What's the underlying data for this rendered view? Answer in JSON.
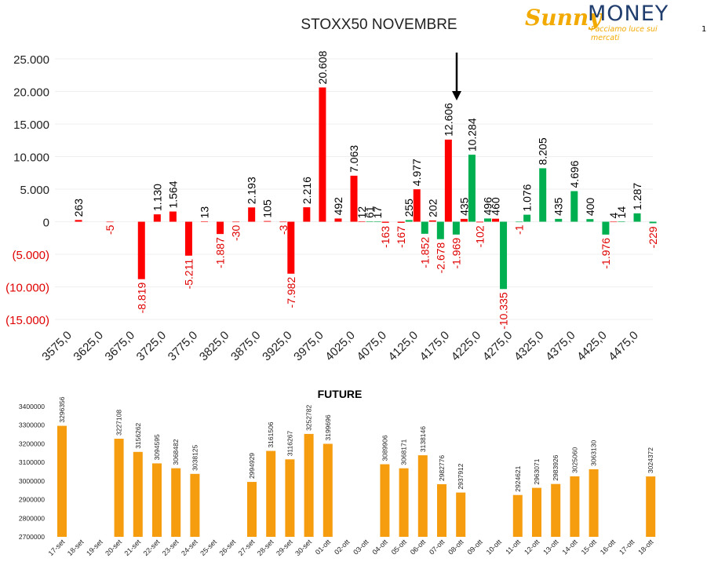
{
  "page_number": "1",
  "logo": {
    "part1": "Sunny",
    "part2": "MONEY",
    "tagline": "Facciamo luce sui mercati"
  },
  "chart_data": [
    {
      "type": "bar",
      "title": "STOXX50 NOVEMBRE",
      "ylim": [
        -15000,
        25000
      ],
      "y_ticks": [
        25000,
        20000,
        15000,
        10000,
        5000,
        0,
        -5000,
        -10000,
        -15000
      ],
      "y_tick_labels": [
        "25.000",
        "20.000",
        "15.000",
        "10.000",
        "5.000",
        "0",
        "(5.000)",
        "(10.000)",
        "(15.000)"
      ],
      "x_tick_labels": [
        "3575,0",
        "3625,0",
        "3675,0",
        "3725,0",
        "3775,0",
        "3825,0",
        "3875,0",
        "3925,0",
        "3975,0",
        "4025,0",
        "4075,0",
        "4125,0",
        "4175,0",
        "4225,0",
        "4275,0",
        "4325,0",
        "4375,0",
        "4425,0",
        "4475,0"
      ],
      "x_range": [
        3575,
        4475
      ],
      "colors": {
        "red": "#ff0000",
        "green": "#00b050",
        "positive_label": "#000000",
        "negative_label": "#e00000"
      },
      "arrow_strike": 4187.5,
      "bars": [
        {
          "strike": 3600,
          "value": 263,
          "label": "263",
          "color": "red"
        },
        {
          "strike": 3650,
          "value": -5,
          "label": "-5",
          "color": "red"
        },
        {
          "strike": 3700,
          "value": -8819,
          "label": "-8.819",
          "color": "red"
        },
        {
          "strike": 3725,
          "value": 1130,
          "label": "1.130",
          "color": "red"
        },
        {
          "strike": 3750,
          "value": 1564,
          "label": "1.564",
          "color": "red"
        },
        {
          "strike": 3775,
          "value": -5211,
          "label": "-5.211",
          "color": "red"
        },
        {
          "strike": 3800,
          "value": 13,
          "label": "13",
          "color": "red"
        },
        {
          "strike": 3825,
          "value": -1887,
          "label": "-1.887",
          "color": "red"
        },
        {
          "strike": 3850,
          "value": -30,
          "label": "-30",
          "color": "red"
        },
        {
          "strike": 3875,
          "value": 2193,
          "label": "2.193",
          "color": "red"
        },
        {
          "strike": 3900,
          "value": 105,
          "label": "105",
          "color": "red"
        },
        {
          "strike": 3925,
          "value": -3,
          "label": "-3",
          "color": "red"
        },
        {
          "strike": 3937.5,
          "value": -7982,
          "label": "-7.982",
          "color": "red"
        },
        {
          "strike": 3962.5,
          "value": 2216,
          "label": "2.216",
          "color": "red"
        },
        {
          "strike": 3987.5,
          "value": 20608,
          "label": "20.608",
          "color": "red"
        },
        {
          "strike": 4012.5,
          "value": 492,
          "label": "492",
          "color": "red"
        },
        {
          "strike": 4037.5,
          "value": 7063,
          "label": "7.063",
          "color": "red"
        },
        {
          "strike": 4050,
          "value": 12,
          "label": "12",
          "color": "red"
        },
        {
          "strike": 4062.5,
          "value": 61,
          "label": "61",
          "color": "green"
        },
        {
          "strike": 4075,
          "value": 17,
          "label": "17",
          "color": "green"
        },
        {
          "strike": 4087.5,
          "value": -163,
          "label": "-163",
          "color": "red"
        },
        {
          "strike": 4112.5,
          "value": -167,
          "label": "-167",
          "color": "red"
        },
        {
          "strike": 4125,
          "value": 255,
          "label": "255",
          "color": "green"
        },
        {
          "strike": 4137.5,
          "value": 4977,
          "label": "4.977",
          "color": "red"
        },
        {
          "strike": 4150,
          "value": -1852,
          "label": "-1.852",
          "color": "green"
        },
        {
          "strike": 4162.5,
          "value": 202,
          "label": "202",
          "color": "red"
        },
        {
          "strike": 4175,
          "value": -2678,
          "label": "-2.678",
          "color": "green"
        },
        {
          "strike": 4187.5,
          "value": 12606,
          "label": "12.606",
          "color": "red"
        },
        {
          "strike": 4200,
          "value": -1969,
          "label": "-1.969",
          "color": "green"
        },
        {
          "strike": 4212.5,
          "value": 435,
          "label": "435",
          "color": "red"
        },
        {
          "strike": 4225,
          "value": 10284,
          "label": "10.284",
          "color": "green"
        },
        {
          "strike": 4237.5,
          "value": -102,
          "label": "-102",
          "color": "red"
        },
        {
          "strike": 4250,
          "value": 496,
          "label": "496",
          "color": "green"
        },
        {
          "strike": 4262.5,
          "value": 460,
          "label": "460",
          "color": "red"
        },
        {
          "strike": 4275,
          "value": -10335,
          "label": "-10.335",
          "color": "green"
        },
        {
          "strike": 4300,
          "value": -1,
          "label": "-1",
          "color": "green"
        },
        {
          "strike": 4312.5,
          "value": 1076,
          "label": "1.076",
          "color": "green"
        },
        {
          "strike": 4337.5,
          "value": 8205,
          "label": "8.205",
          "color": "green"
        },
        {
          "strike": 4362.5,
          "value": 435,
          "label": "435",
          "color": "green"
        },
        {
          "strike": 4387.5,
          "value": 4696,
          "label": "4.696",
          "color": "green"
        },
        {
          "strike": 4412.5,
          "value": 400,
          "label": "400",
          "color": "green"
        },
        {
          "strike": 4437.5,
          "value": -1976,
          "label": "-1.976",
          "color": "green"
        },
        {
          "strike": 4450,
          "value": 4,
          "label": "4",
          "color": "red"
        },
        {
          "strike": 4462.5,
          "value": 14,
          "label": "14",
          "color": "green"
        },
        {
          "strike": 4487.5,
          "value": 1287,
          "label": "1.287",
          "color": "green"
        },
        {
          "strike": 4512.5,
          "value": -229,
          "label": "-229",
          "color": "green"
        }
      ]
    },
    {
      "type": "bar",
      "title": "FUTURE",
      "ylim": [
        2700000,
        3400000
      ],
      "y_ticks": [
        2700000,
        2800000,
        2900000,
        3000000,
        3100000,
        3200000,
        3300000,
        3400000
      ],
      "y_tick_labels": [
        "2700000",
        "2800000",
        "2900000",
        "3000000",
        "3100000",
        "3200000",
        "3300000",
        "3400000"
      ],
      "bar_color": "#f59c0f",
      "categories": [
        "17-set",
        "18-set",
        "19-set",
        "20-set",
        "21-set",
        "22-set",
        "23-set",
        "24-set",
        "25-set",
        "26-set",
        "27-set",
        "28-set",
        "29-set",
        "30-set",
        "01-ott",
        "02-ott",
        "03-ott",
        "04-ott",
        "05-ott",
        "06-ott",
        "07-ott",
        "08-ott",
        "09-ott",
        "10-ott",
        "11-ott",
        "12-ott",
        "13-ott",
        "14-ott",
        "15-ott",
        "16-ott",
        "17-ott",
        "18-ott"
      ],
      "values": [
        3296356,
        null,
        null,
        3227108,
        3156262,
        3094595,
        3068482,
        3038125,
        null,
        null,
        2994929,
        3161506,
        3116267,
        3252782,
        3199696,
        null,
        null,
        3089906,
        3068171,
        3138146,
        2982776,
        2937912,
        null,
        null,
        2924621,
        2963071,
        2983926,
        3025060,
        3063130,
        null,
        null,
        3024372
      ],
      "labels": [
        "3296356",
        "",
        "",
        "3227108",
        "3156262",
        "3094595",
        "3068482",
        "3038125",
        "",
        "",
        "2994929",
        "3161506",
        "3116267",
        "3252782",
        "3199696",
        "",
        "",
        "3089906",
        "3068171",
        "3138146",
        "2982776",
        "2937912",
        "",
        "",
        "2924621",
        "2963071",
        "2983926",
        "3025060",
        "3063130",
        "",
        "",
        "3024372"
      ]
    }
  ]
}
